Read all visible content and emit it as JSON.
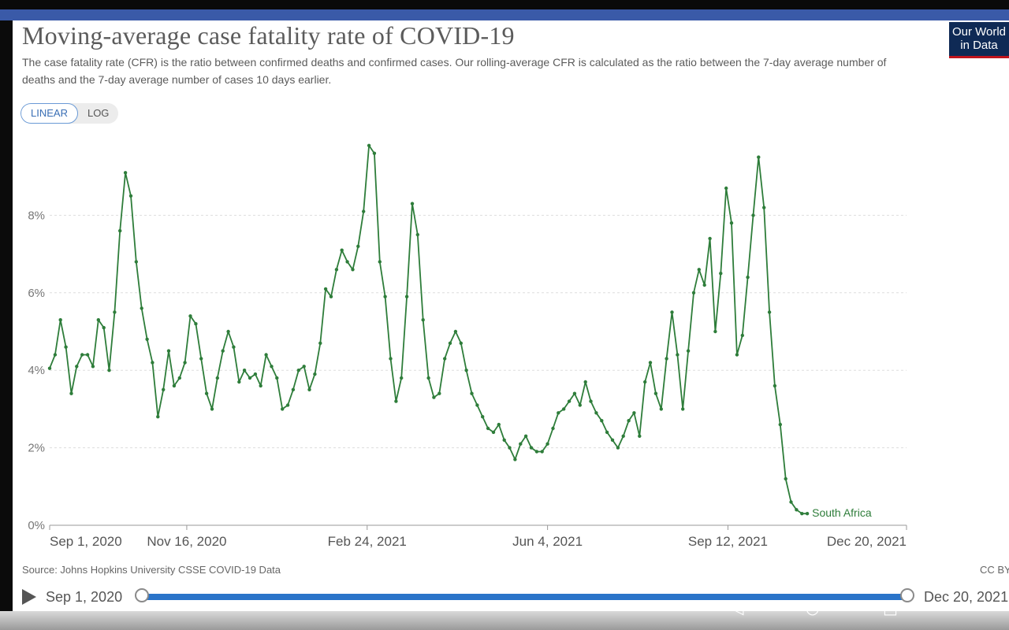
{
  "header": {
    "title": "Moving-average case fatality rate of COVID-19",
    "subtitle": "The case fatality rate (CFR) is the ratio between confirmed deaths and confirmed cases. Our rolling-average CFR is calculated as the ratio between the 7-day average number of deaths and the 7-day average number of cases 10 days earlier.",
    "logo_line1": "Our World",
    "logo_line2": "in Data"
  },
  "controls": {
    "linear_label": "LINEAR",
    "log_label": "LOG",
    "active": "LINEAR"
  },
  "footer": {
    "source": "Source: Johns Hopkins University CSSE COVID-19 Data",
    "license": "CC BY",
    "timeline_start": "Sep 1, 2020",
    "timeline_end": "Dec 20, 2021"
  },
  "colors": {
    "series": "#2e7d3a",
    "accent": "#2a74c9",
    "logo_bg": "#0f2a55",
    "logo_bar": "#c0141c"
  },
  "chart_data": {
    "type": "line",
    "title": "Moving-average case fatality rate of COVID-19",
    "x_scale": "date",
    "y_scale": "linear",
    "ylim": [
      0,
      0.1
    ],
    "yticks": [
      {
        "value": 0,
        "label": "0%"
      },
      {
        "value": 0.02,
        "label": "2%"
      },
      {
        "value": 0.04,
        "label": "4%"
      },
      {
        "value": 0.06,
        "label": "6%"
      },
      {
        "value": 0.08,
        "label": "8%"
      }
    ],
    "xlim": [
      "2020-09-01",
      "2021-12-20"
    ],
    "xticks": [
      {
        "value": "2020-09-01",
        "label": "Sep 1, 2020"
      },
      {
        "value": "2020-11-16",
        "label": "Nov 16, 2020"
      },
      {
        "value": "2021-02-24",
        "label": "Feb 24, 2021"
      },
      {
        "value": "2021-06-04",
        "label": "Jun 4, 2021"
      },
      {
        "value": "2021-09-12",
        "label": "Sep 12, 2021"
      },
      {
        "value": "2021-12-20",
        "label": "Dec 20, 2021"
      }
    ],
    "grid": "horizontal",
    "series": [
      {
        "name": "South Africa",
        "points": [
          [
            "2020-09-01",
            0.0405
          ],
          [
            "2020-09-04",
            0.044
          ],
          [
            "2020-09-07",
            0.053
          ],
          [
            "2020-09-10",
            0.046
          ],
          [
            "2020-09-13",
            0.034
          ],
          [
            "2020-09-16",
            0.041
          ],
          [
            "2020-09-19",
            0.044
          ],
          [
            "2020-09-22",
            0.044
          ],
          [
            "2020-09-25",
            0.041
          ],
          [
            "2020-09-28",
            0.053
          ],
          [
            "2020-10-01",
            0.051
          ],
          [
            "2020-10-04",
            0.04
          ],
          [
            "2020-10-07",
            0.055
          ],
          [
            "2020-10-10",
            0.076
          ],
          [
            "2020-10-13",
            0.091
          ],
          [
            "2020-10-16",
            0.085
          ],
          [
            "2020-10-19",
            0.068
          ],
          [
            "2020-10-22",
            0.056
          ],
          [
            "2020-10-25",
            0.048
          ],
          [
            "2020-10-28",
            0.042
          ],
          [
            "2020-10-31",
            0.028
          ],
          [
            "2020-11-03",
            0.035
          ],
          [
            "2020-11-06",
            0.045
          ],
          [
            "2020-11-09",
            0.036
          ],
          [
            "2020-11-12",
            0.038
          ],
          [
            "2020-11-15",
            0.042
          ],
          [
            "2020-11-18",
            0.054
          ],
          [
            "2020-11-21",
            0.052
          ],
          [
            "2020-11-24",
            0.043
          ],
          [
            "2020-11-27",
            0.034
          ],
          [
            "2020-11-30",
            0.03
          ],
          [
            "2020-12-03",
            0.038
          ],
          [
            "2020-12-06",
            0.045
          ],
          [
            "2020-12-09",
            0.05
          ],
          [
            "2020-12-12",
            0.046
          ],
          [
            "2020-12-15",
            0.037
          ],
          [
            "2020-12-18",
            0.04
          ],
          [
            "2020-12-21",
            0.038
          ],
          [
            "2020-12-24",
            0.039
          ],
          [
            "2020-12-27",
            0.036
          ],
          [
            "2020-12-30",
            0.044
          ],
          [
            "2021-01-02",
            0.041
          ],
          [
            "2021-01-05",
            0.038
          ],
          [
            "2021-01-08",
            0.03
          ],
          [
            "2021-01-11",
            0.031
          ],
          [
            "2021-01-14",
            0.035
          ],
          [
            "2021-01-17",
            0.04
          ],
          [
            "2021-01-20",
            0.041
          ],
          [
            "2021-01-23",
            0.035
          ],
          [
            "2021-01-26",
            0.039
          ],
          [
            "2021-01-29",
            0.047
          ],
          [
            "2021-02-01",
            0.061
          ],
          [
            "2021-02-04",
            0.059
          ],
          [
            "2021-02-07",
            0.066
          ],
          [
            "2021-02-10",
            0.071
          ],
          [
            "2021-02-13",
            0.068
          ],
          [
            "2021-02-16",
            0.066
          ],
          [
            "2021-02-19",
            0.072
          ],
          [
            "2021-02-22",
            0.081
          ],
          [
            "2021-02-25",
            0.098
          ],
          [
            "2021-02-28",
            0.096
          ],
          [
            "2021-03-03",
            0.068
          ],
          [
            "2021-03-06",
            0.059
          ],
          [
            "2021-03-09",
            0.043
          ],
          [
            "2021-03-12",
            0.032
          ],
          [
            "2021-03-15",
            0.038
          ],
          [
            "2021-03-18",
            0.059
          ],
          [
            "2021-03-21",
            0.083
          ],
          [
            "2021-03-24",
            0.075
          ],
          [
            "2021-03-27",
            0.053
          ],
          [
            "2021-03-30",
            0.038
          ],
          [
            "2021-04-02",
            0.033
          ],
          [
            "2021-04-05",
            0.034
          ],
          [
            "2021-04-08",
            0.043
          ],
          [
            "2021-04-11",
            0.047
          ],
          [
            "2021-04-14",
            0.05
          ],
          [
            "2021-04-17",
            0.047
          ],
          [
            "2021-04-20",
            0.04
          ],
          [
            "2021-04-23",
            0.034
          ],
          [
            "2021-04-26",
            0.031
          ],
          [
            "2021-04-29",
            0.028
          ],
          [
            "2021-05-02",
            0.025
          ],
          [
            "2021-05-05",
            0.024
          ],
          [
            "2021-05-08",
            0.026
          ],
          [
            "2021-05-11",
            0.022
          ],
          [
            "2021-05-14",
            0.02
          ],
          [
            "2021-05-17",
            0.017
          ],
          [
            "2021-05-20",
            0.021
          ],
          [
            "2021-05-23",
            0.023
          ],
          [
            "2021-05-26",
            0.02
          ],
          [
            "2021-05-29",
            0.019
          ],
          [
            "2021-06-01",
            0.019
          ],
          [
            "2021-06-04",
            0.021
          ],
          [
            "2021-06-07",
            0.025
          ],
          [
            "2021-06-10",
            0.029
          ],
          [
            "2021-06-13",
            0.03
          ],
          [
            "2021-06-16",
            0.032
          ],
          [
            "2021-06-19",
            0.034
          ],
          [
            "2021-06-22",
            0.031
          ],
          [
            "2021-06-25",
            0.037
          ],
          [
            "2021-06-28",
            0.032
          ],
          [
            "2021-07-01",
            0.029
          ],
          [
            "2021-07-04",
            0.027
          ],
          [
            "2021-07-07",
            0.024
          ],
          [
            "2021-07-10",
            0.022
          ],
          [
            "2021-07-13",
            0.02
          ],
          [
            "2021-07-16",
            0.023
          ],
          [
            "2021-07-19",
            0.027
          ],
          [
            "2021-07-22",
            0.029
          ],
          [
            "2021-07-25",
            0.023
          ],
          [
            "2021-07-28",
            0.037
          ],
          [
            "2021-07-31",
            0.042
          ],
          [
            "2021-08-03",
            0.034
          ],
          [
            "2021-08-06",
            0.03
          ],
          [
            "2021-08-09",
            0.043
          ],
          [
            "2021-08-12",
            0.055
          ],
          [
            "2021-08-15",
            0.044
          ],
          [
            "2021-08-18",
            0.03
          ],
          [
            "2021-08-21",
            0.045
          ],
          [
            "2021-08-24",
            0.06
          ],
          [
            "2021-08-27",
            0.066
          ],
          [
            "2021-08-30",
            0.062
          ],
          [
            "2021-09-02",
            0.074
          ],
          [
            "2021-09-05",
            0.05
          ],
          [
            "2021-09-08",
            0.065
          ],
          [
            "2021-09-11",
            0.087
          ],
          [
            "2021-09-14",
            0.078
          ],
          [
            "2021-09-17",
            0.044
          ],
          [
            "2021-09-20",
            0.049
          ],
          [
            "2021-09-23",
            0.064
          ],
          [
            "2021-09-26",
            0.08
          ],
          [
            "2021-09-29",
            0.095
          ],
          [
            "2021-10-02",
            0.082
          ],
          [
            "2021-10-05",
            0.055
          ],
          [
            "2021-10-08",
            0.036
          ],
          [
            "2021-10-11",
            0.026
          ],
          [
            "2021-10-14",
            0.012
          ],
          [
            "2021-10-17",
            0.006
          ],
          [
            "2021-10-20",
            0.004
          ],
          [
            "2021-10-23",
            0.003
          ],
          [
            "2021-10-26",
            0.003
          ]
        ]
      }
    ],
    "series_label": "South Africa"
  }
}
